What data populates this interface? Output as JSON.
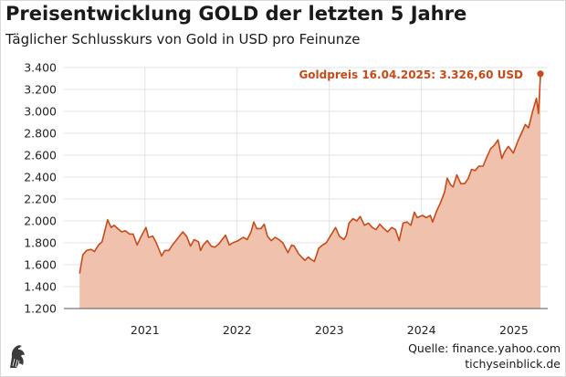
{
  "header": {
    "title": "Preisentwicklung GOLD der letzten 5 Jahre",
    "subtitle": "Täglicher Schlusskurs von Gold in USD pro Feinunze"
  },
  "footer": {
    "source": "Quelle: finance.yahoo.com",
    "brand": "tichyseinblick.de",
    "logo_icon": "eagle-logo-icon"
  },
  "colors": {
    "line": "#c84a18",
    "area": "#f0c2ae",
    "grid": "#e3e3e3",
    "annotation": "#c84a18"
  },
  "chart_data": {
    "type": "area",
    "title": "Preisentwicklung GOLD der letzten 5 Jahre",
    "subtitle": "Täglicher Schlusskurs von Gold in USD pro Feinunze",
    "ylim": [
      1200,
      3400
    ],
    "yticks": [
      1200,
      1400,
      1600,
      1800,
      2000,
      2200,
      2400,
      2600,
      2800,
      3000,
      3200,
      3400
    ],
    "ytick_labels": [
      "1.200",
      "1.400",
      "1.600",
      "1.800",
      "2.000",
      "2.200",
      "2.400",
      "2.600",
      "2.800",
      "3.000",
      "3.200",
      "3.400"
    ],
    "xlim": [
      "2020-02-15",
      "2025-05-15"
    ],
    "xticks": [
      "2021-01-01",
      "2022-01-01",
      "2023-01-01",
      "2024-01-01",
      "2025-01-01"
    ],
    "xtick_labels": [
      "2021",
      "2022",
      "2023",
      "2024",
      "2025"
    ],
    "grid": true,
    "annotation": {
      "text": "Goldpreis 16.04.2025: 3.326,60 USD",
      "date": "2025-04-16",
      "value": 3326.6
    },
    "series": [
      {
        "x": [
          "2020-04-17",
          "2020-04-30",
          "2020-05-15",
          "2020-06-01",
          "2020-06-15",
          "2020-07-01",
          "2020-07-15",
          "2020-08-06",
          "2020-08-20",
          "2020-09-01",
          "2020-09-15",
          "2020-10-01",
          "2020-10-15",
          "2020-11-01",
          "2020-11-15",
          "2020-12-01",
          "2020-12-15",
          "2021-01-05",
          "2021-01-15",
          "2021-02-01",
          "2021-02-15",
          "2021-03-08",
          "2021-03-20",
          "2021-04-05",
          "2021-04-20",
          "2021-05-10",
          "2021-05-31",
          "2021-06-15",
          "2021-06-30",
          "2021-07-15",
          "2021-08-01",
          "2021-08-09",
          "2021-08-20",
          "2021-09-05",
          "2021-09-20",
          "2021-10-05",
          "2021-10-20",
          "2021-11-16",
          "2021-12-01",
          "2021-12-15",
          "2022-01-05",
          "2022-01-25",
          "2022-02-10",
          "2022-02-25",
          "2022-03-08",
          "2022-03-20",
          "2022-04-05",
          "2022-04-18",
          "2022-05-01",
          "2022-05-16",
          "2022-06-01",
          "2022-06-15",
          "2022-07-01",
          "2022-07-21",
          "2022-08-05",
          "2022-08-15",
          "2022-09-01",
          "2022-09-26",
          "2022-10-10",
          "2022-10-20",
          "2022-11-03",
          "2022-11-20",
          "2022-12-05",
          "2022-12-20",
          "2023-01-10",
          "2023-01-26",
          "2023-02-10",
          "2023-02-28",
          "2023-03-10",
          "2023-03-20",
          "2023-04-05",
          "2023-04-20",
          "2023-05-03",
          "2023-05-20",
          "2023-06-05",
          "2023-06-20",
          "2023-07-05",
          "2023-07-20",
          "2023-08-05",
          "2023-08-20",
          "2023-09-05",
          "2023-09-20",
          "2023-10-05",
          "2023-10-20",
          "2023-11-05",
          "2023-11-20",
          "2023-12-04",
          "2023-12-15",
          "2024-01-05",
          "2024-01-20",
          "2024-02-05",
          "2024-02-14",
          "2024-03-01",
          "2024-03-15",
          "2024-04-01",
          "2024-04-12",
          "2024-04-25",
          "2024-05-05",
          "2024-05-20",
          "2024-06-05",
          "2024-06-20",
          "2024-07-05",
          "2024-07-17",
          "2024-08-01",
          "2024-08-15",
          "2024-09-01",
          "2024-09-15",
          "2024-10-01",
          "2024-10-15",
          "2024-10-30",
          "2024-11-14",
          "2024-11-25",
          "2024-12-10",
          "2024-12-30",
          "2025-01-15",
          "2025-01-31",
          "2025-02-15",
          "2025-02-28",
          "2025-03-15",
          "2025-03-31",
          "2025-04-08",
          "2025-04-16"
        ],
        "values": [
          1520,
          1690,
          1730,
          1740,
          1720,
          1780,
          1810,
          2010,
          1940,
          1960,
          1930,
          1900,
          1910,
          1880,
          1880,
          1780,
          1850,
          1940,
          1850,
          1860,
          1800,
          1680,
          1730,
          1730,
          1780,
          1840,
          1900,
          1860,
          1770,
          1830,
          1810,
          1730,
          1780,
          1820,
          1770,
          1760,
          1790,
          1870,
          1780,
          1800,
          1820,
          1850,
          1830,
          1900,
          1990,
          1930,
          1930,
          1970,
          1860,
          1820,
          1850,
          1830,
          1800,
          1710,
          1780,
          1770,
          1700,
          1640,
          1670,
          1650,
          1630,
          1750,
          1780,
          1800,
          1880,
          1940,
          1860,
          1830,
          1870,
          1980,
          2020,
          2000,
          2040,
          1960,
          1980,
          1940,
          1920,
          1970,
          1930,
          1900,
          1940,
          1920,
          1820,
          1980,
          1990,
          1960,
          2080,
          2030,
          2050,
          2030,
          2050,
          1990,
          2090,
          2160,
          2260,
          2390,
          2330,
          2310,
          2420,
          2340,
          2340,
          2390,
          2470,
          2460,
          2500,
          2500,
          2580,
          2660,
          2690,
          2740,
          2570,
          2630,
          2680,
          2620,
          2720,
          2800,
          2880,
          2850,
          2990,
          3120,
          2980,
          3326.6
        ]
      }
    ]
  }
}
